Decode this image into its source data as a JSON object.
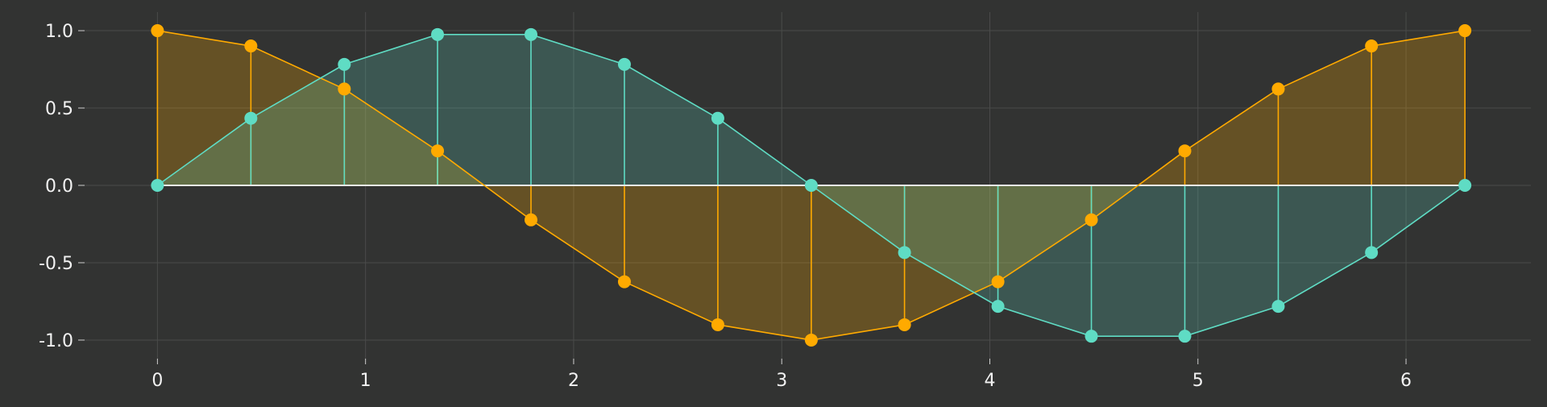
{
  "chart_data": {
    "type": "line",
    "background": "#323332",
    "grid": true,
    "grid_color": "#4a4b4a",
    "baseline_color": "#e8e8e8",
    "xlim": [
      -0.35,
      6.6
    ],
    "ylim": [
      -1.12,
      1.12
    ],
    "x_ticks": [
      0,
      1,
      2,
      3,
      4,
      5,
      6
    ],
    "x_tick_labels": [
      "0",
      "1",
      "2",
      "3",
      "4",
      "5",
      "6"
    ],
    "y_ticks": [
      1.0,
      0.5,
      0.0,
      -0.5,
      -1.0
    ],
    "y_tick_labels": [
      "1.0",
      "0.5",
      "0.0",
      "-0.5",
      "-1.0"
    ],
    "x": [
      0,
      0.449,
      0.898,
      1.346,
      1.795,
      2.244,
      2.693,
      3.142,
      3.59,
      4.039,
      4.488,
      4.937,
      5.386,
      5.834,
      6.283
    ],
    "series": [
      {
        "color": "#ffaa00",
        "fill": "rgba(255,170,0,0.25)",
        "values": [
          1.0,
          0.901,
          0.623,
          0.223,
          -0.223,
          -0.623,
          -0.901,
          -1.0,
          -0.901,
          -0.623,
          -0.223,
          0.223,
          0.623,
          0.901,
          1.0
        ]
      },
      {
        "color": "#5fdcc4",
        "fill": "rgba(95,220,196,0.22)",
        "values": [
          0.0,
          0.434,
          0.782,
          0.975,
          0.975,
          0.782,
          0.434,
          0.0,
          -0.434,
          -0.782,
          -0.975,
          -0.975,
          -0.782,
          -0.434,
          0.0
        ]
      }
    ]
  }
}
